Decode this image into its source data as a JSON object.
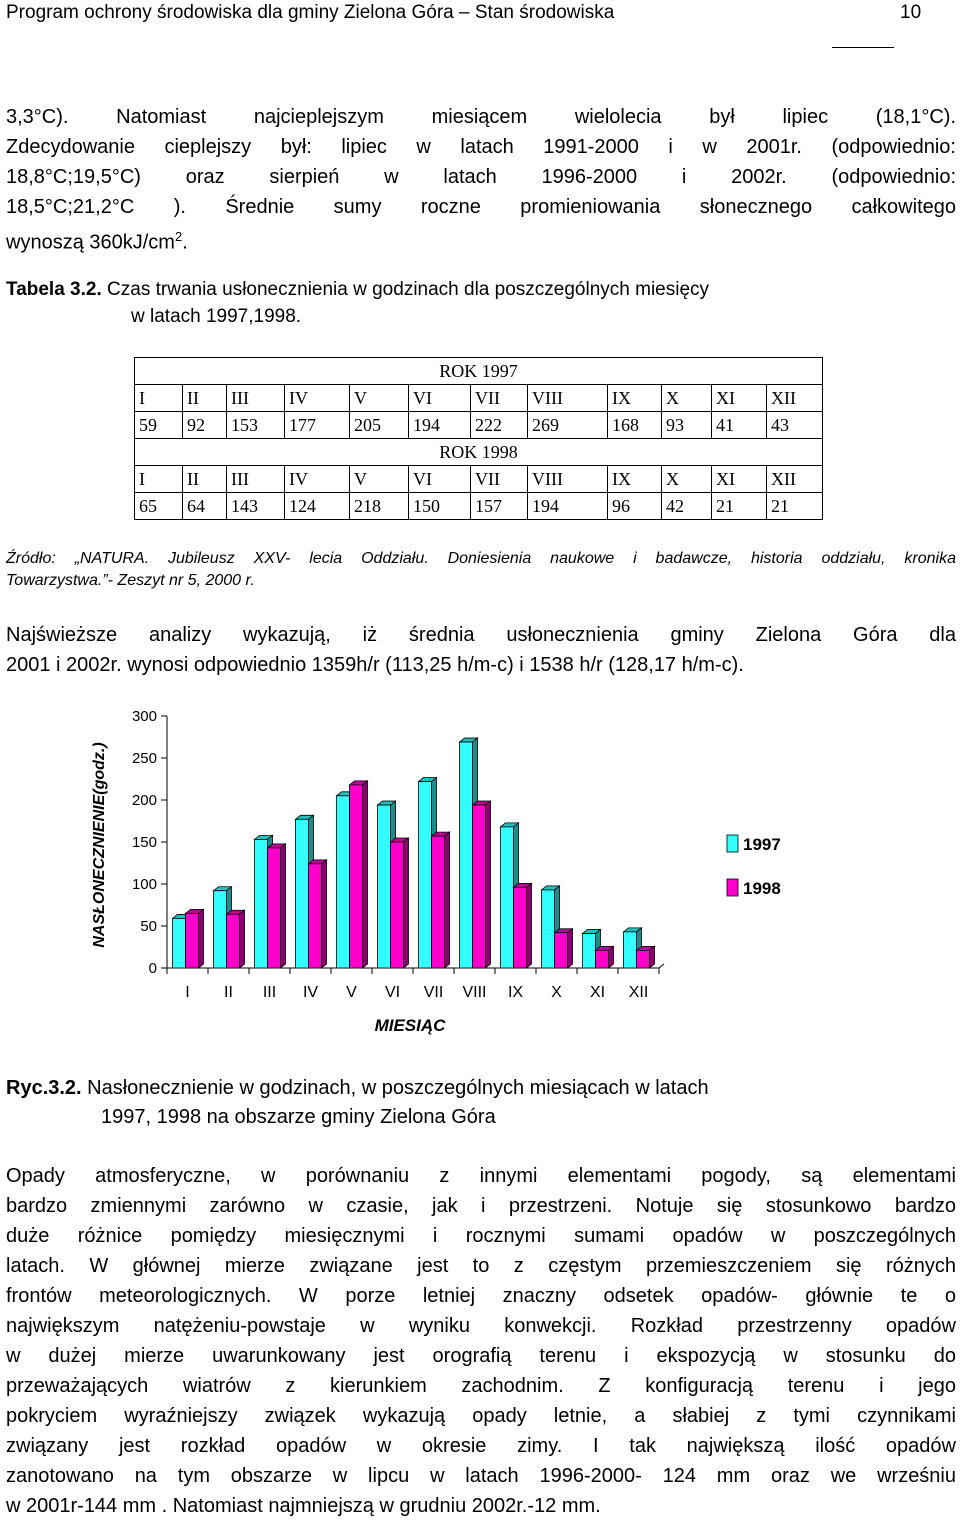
{
  "header": {
    "title": "Program ochrony środowiska dla gminy Zielona Góra – Stan środowiska",
    "page_number": "10"
  },
  "intro_paragraph": [
    "3,3°C). Natomiast najcieplejszym miesiącem wielolecia był lipiec (18,1°C).",
    "Zdecydowanie cieplejszy był: lipiec w latach 1991-2000 i w 2001r. (odpowiednio:",
    "18,8°C;19,5°C) oraz sierpień w latach 1996-2000 i 2002r. (odpowiednio:",
    "18,5°C;21,2°C ). Średnie sumy roczne promieniowania słonecznego całkowitego",
    "wynoszą 360kJ/cm"
  ],
  "intro_superscript": "2",
  "intro_end": ".",
  "table_caption": {
    "label": "Tabela 3.2.",
    "line1": " Czas trwania usłonecznienia w  godzinach dla poszczególnych miesięcy",
    "line2": "w latach 1997,1998."
  },
  "table": {
    "months": [
      "I",
      "II",
      "III",
      "IV",
      "V",
      "VI",
      "VII",
      "VIII",
      "IX",
      "X",
      "XI",
      "XII"
    ],
    "years": [
      {
        "label": "ROK 1997",
        "values": [
          "59",
          "92",
          "153",
          "177",
          "205",
          "194",
          "222",
          "269",
          "168",
          "93",
          "41",
          "43"
        ]
      },
      {
        "label": "ROK 1998",
        "values": [
          "65",
          "64",
          "143",
          "124",
          "218",
          "150",
          "157",
          "194",
          "96",
          "42",
          "21",
          "21"
        ]
      }
    ]
  },
  "source": [
    "Źródło: „NATURA. Jubileusz XXV- lecia Oddziału. Doniesienia naukowe i badawcze, historia oddziału, kronika",
    "Towarzystwa.”- Zeszyt nr 5, 2000 r."
  ],
  "summary_paragraph": [
    "Najświeższe analizy wykazują, iż średnia  usłonecznienia gminy Zielona Góra dla",
    "2001 i 2002r. wynosi odpowiednio 1359h/r (113,25 h/m-c) i 1538 h/r (128,17 h/m-c)."
  ],
  "chart_data": {
    "type": "bar",
    "categories": [
      "I",
      "II",
      "III",
      "IV",
      "V",
      "VI",
      "VII",
      "VIII",
      "IX",
      "X",
      "XI",
      "XII"
    ],
    "series": [
      {
        "name": "1997",
        "color": "#33ffff",
        "values": [
          59,
          92,
          153,
          177,
          205,
          194,
          222,
          269,
          168,
          93,
          41,
          43
        ]
      },
      {
        "name": "1998",
        "color": "#ff00cc",
        "values": [
          65,
          64,
          143,
          124,
          218,
          150,
          157,
          194,
          96,
          42,
          21,
          21
        ]
      }
    ],
    "title": "",
    "xlabel": "MIESIĄC",
    "ylabel": "NASŁONECZNIENIE(godz.)",
    "ylim": [
      0,
      300
    ],
    "yticks": [
      "0",
      "50",
      "100",
      "150",
      "200",
      "250",
      "300"
    ],
    "style": "3d",
    "grid": false,
    "legend": "right"
  },
  "figure_caption": {
    "label": "Ryc.3.2.",
    "line1": " Nasłonecznienie w godzinach, w poszczególnych miesiącach w latach",
    "line2": "1997, 1998 na obszarze gminy Zielona Góra"
  },
  "body_paragraph": [
    "Opady atmosferyczne, w porównaniu z innymi elementami pogody, są elementami",
    "bardzo zmiennymi zarówno w czasie, jak i przestrzeni. Notuje się stosunkowo bardzo",
    "duże różnice pomiędzy miesięcznymi i rocznymi sumami opadów w poszczególnych",
    "latach. W głównej mierze związane jest to z częstym przemieszczeniem się różnych",
    "frontów meteorologicznych. W porze letniej znaczny odsetek opadów- głównie te o",
    "największym natężeniu-powstaje w wyniku konwekcji. Rozkład przestrzenny opadów",
    "w dużej mierze uwarunkowany jest orografią terenu i ekspozycją w stosunku do",
    "przeważających wiatrów z kierunkiem zachodnim. Z konfiguracją terenu i jego",
    "pokryciem wyraźniejszy związek wykazują opady letnie, a słabiej z tymi czynnikami",
    "związany jest rozkład opadów w okresie zimy. I tak największą ilość opadów",
    "zanotowano na tym obszarze w lipcu w latach 1996-2000- 124 mm oraz we wrześniu",
    "w 2001r-144 mm . Natomiast najmniejszą w grudniu 2002r.-12 mm."
  ]
}
